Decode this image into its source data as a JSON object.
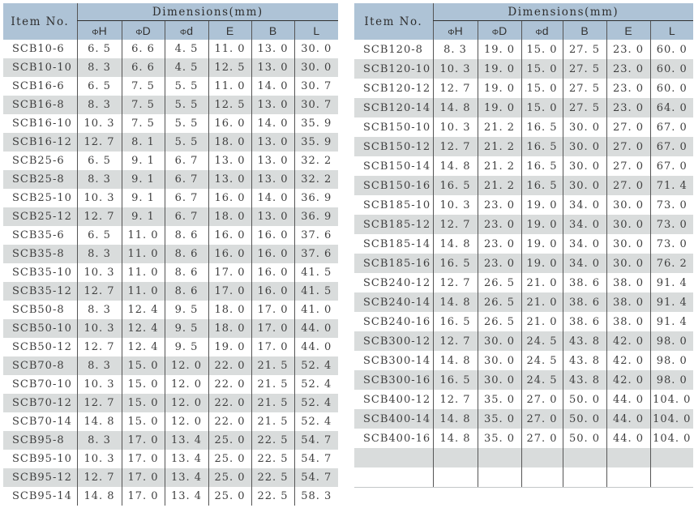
{
  "colors": {
    "header_bg": "#aec3d6",
    "stripe_bg": "#d9dcdc",
    "text_color": "#3e3e3e",
    "border_color": "#555555",
    "header_rule": "#2f2f2f",
    "table_bottom": "#c3c7c8",
    "page_bg": "#ffffff"
  },
  "tables": [
    {
      "header": {
        "item_label": "Item No.",
        "dimensions_label": "Dimensions(mm)",
        "columns": [
          "ΦH",
          "ΦD",
          "Φd",
          "E",
          "B",
          "L"
        ]
      },
      "rows": [
        [
          "SCB10-6",
          "6.5",
          "6.6",
          "4.5",
          "11.0",
          "13.0",
          "30.0"
        ],
        [
          "SCB10-10",
          "8.3",
          "6.6",
          "4.5",
          "12.5",
          "13.0",
          "30.0"
        ],
        [
          "SCB16-6",
          "6.5",
          "7.5",
          "5.5",
          "11.0",
          "14.0",
          "30.7"
        ],
        [
          "SCB16-8",
          "8.3",
          "7.5",
          "5.5",
          "12.5",
          "13.0",
          "30.7"
        ],
        [
          "SCB16-10",
          "10.3",
          "7.5",
          "5.5",
          "16.0",
          "14.0",
          "35.9"
        ],
        [
          "SCB16-12",
          "12.7",
          "8.1",
          "5.5",
          "18.0",
          "13.0",
          "35.9"
        ],
        [
          "SCB25-6",
          "6.5",
          "9.1",
          "6.7",
          "13.0",
          "13.0",
          "32.2"
        ],
        [
          "SCB25-8",
          "8.3",
          "9.1",
          "6.7",
          "13.0",
          "13.0",
          "32.2"
        ],
        [
          "SCB25-10",
          "10.3",
          "9.1",
          "6.7",
          "16.0",
          "14.0",
          "36.9"
        ],
        [
          "SCB25-12",
          "12.7",
          "9.1",
          "6.7",
          "18.0",
          "13.0",
          "36.9"
        ],
        [
          "SCB35-6",
          "6.5",
          "11.0",
          "8.6",
          "16.0",
          "16.0",
          "37.6"
        ],
        [
          "SCB35-8",
          "8.3",
          "11.0",
          "8.6",
          "16.0",
          "16.0",
          "37.6"
        ],
        [
          "SCB35-10",
          "10.3",
          "11.0",
          "8.6",
          "17.0",
          "16.0",
          "41.5"
        ],
        [
          "SCB35-12",
          "12.7",
          "11.0",
          "8.6",
          "17.0",
          "16.0",
          "41.5"
        ],
        [
          "SCB50-8",
          "8.3",
          "12.4",
          "9.5",
          "18.0",
          "17.0",
          "41.0"
        ],
        [
          "SCB50-10",
          "10.3",
          "12.4",
          "9.5",
          "18.0",
          "17.0",
          "44.0"
        ],
        [
          "SCB50-12",
          "12.7",
          "12.4",
          "9.5",
          "19.0",
          "17.0",
          "44.0"
        ],
        [
          "SCB70-8",
          "8.3",
          "15.0",
          "12.0",
          "22.0",
          "21.5",
          "52.4"
        ],
        [
          "SCB70-10",
          "10.3",
          "15.0",
          "12.0",
          "22.0",
          "21.5",
          "52.4"
        ],
        [
          "SCB70-12",
          "12.7",
          "15.0",
          "12.0",
          "22.0",
          "21.5",
          "52.4"
        ],
        [
          "SCB70-14",
          "14.8",
          "15.0",
          "12.0",
          "22.0",
          "21.5",
          "52.4"
        ],
        [
          "SCB95-8",
          "8.3",
          "17.0",
          "13.4",
          "25.0",
          "22.5",
          "54.7"
        ],
        [
          "SCB95-10",
          "10.3",
          "17.0",
          "13.4",
          "25.0",
          "22.5",
          "54.7"
        ],
        [
          "SCB95-12",
          "12.7",
          "17.0",
          "13.4",
          "25.0",
          "22.5",
          "54.7"
        ],
        [
          "SCB95-14",
          "14.8",
          "17.0",
          "13.4",
          "25.0",
          "22.5",
          "58.3"
        ]
      ]
    },
    {
      "header": {
        "item_label": "Item No.",
        "dimensions_label": "Dimensions(mm)",
        "columns": [
          "ΦH",
          "ΦD",
          "Φd",
          "B",
          "E",
          "L"
        ]
      },
      "rows": [
        [
          "SCB120-8",
          "8.3",
          "19.0",
          "15.0",
          "27.5",
          "23.0",
          "60.0"
        ],
        [
          "SCB120-10",
          "10.3",
          "19.0",
          "15.0",
          "27.5",
          "23.0",
          "60.0"
        ],
        [
          "SCB120-12",
          "12.7",
          "19.0",
          "15.0",
          "27.5",
          "23.0",
          "60.0"
        ],
        [
          "SCB120-14",
          "14.8",
          "19.0",
          "15.0",
          "27.5",
          "23.0",
          "64.0"
        ],
        [
          "SCB150-10",
          "10.3",
          "21.2",
          "16.5",
          "30.0",
          "27.0",
          "67.0"
        ],
        [
          "SCB150-12",
          "12.7",
          "21.2",
          "16.5",
          "30.0",
          "27.0",
          "67.0"
        ],
        [
          "SCB150-14",
          "14.8",
          "21.2",
          "16.5",
          "30.0",
          "27.0",
          "67.0"
        ],
        [
          "SCB150-16",
          "16.5",
          "21.2",
          "16.5",
          "30.0",
          "27.0",
          "71.4"
        ],
        [
          "SCB185-10",
          "10.3",
          "23.0",
          "19.0",
          "34.0",
          "30.0",
          "73.0"
        ],
        [
          "SCB185-12",
          "12.7",
          "23.0",
          "19.0",
          "34.0",
          "30.0",
          "73.0"
        ],
        [
          "SCB185-14",
          "14.8",
          "23.0",
          "19.0",
          "34.0",
          "30.0",
          "73.0"
        ],
        [
          "SCB185-16",
          "16.5",
          "23.0",
          "19.0",
          "34.0",
          "30.0",
          "76.2"
        ],
        [
          "SCB240-12",
          "12.7",
          "26.5",
          "21.0",
          "38.6",
          "38.0",
          "91.4"
        ],
        [
          "SCB240-14",
          "14.8",
          "26.5",
          "21.0",
          "38.6",
          "38.0",
          "91.4"
        ],
        [
          "SCB240-16",
          "16.5",
          "26.5",
          "21.0",
          "38.6",
          "38.0",
          "91.4"
        ],
        [
          "SCB300-12",
          "12.7",
          "30.0",
          "24.5",
          "43.8",
          "42.0",
          "98.0"
        ],
        [
          "SCB300-14",
          "14.8",
          "30.0",
          "24.5",
          "43.8",
          "42.0",
          "98.0"
        ],
        [
          "SCB300-16",
          "16.5",
          "30.0",
          "24.5",
          "43.8",
          "42.0",
          "98.0"
        ],
        [
          "SCB400-12",
          "12.7",
          "35.0",
          "27.0",
          "50.0",
          "44.0",
          "104.0"
        ],
        [
          "SCB400-14",
          "14.8",
          "35.0",
          "27.0",
          "50.0",
          "44.0",
          "104.0"
        ],
        [
          "SCB400-16",
          "14.8",
          "35.0",
          "27.0",
          "50.0",
          "44.0",
          "104.0"
        ],
        [
          "",
          "",
          "",
          "",
          "",
          "",
          ""
        ],
        [
          "",
          "",
          "",
          "",
          "",
          "",
          ""
        ]
      ]
    }
  ]
}
